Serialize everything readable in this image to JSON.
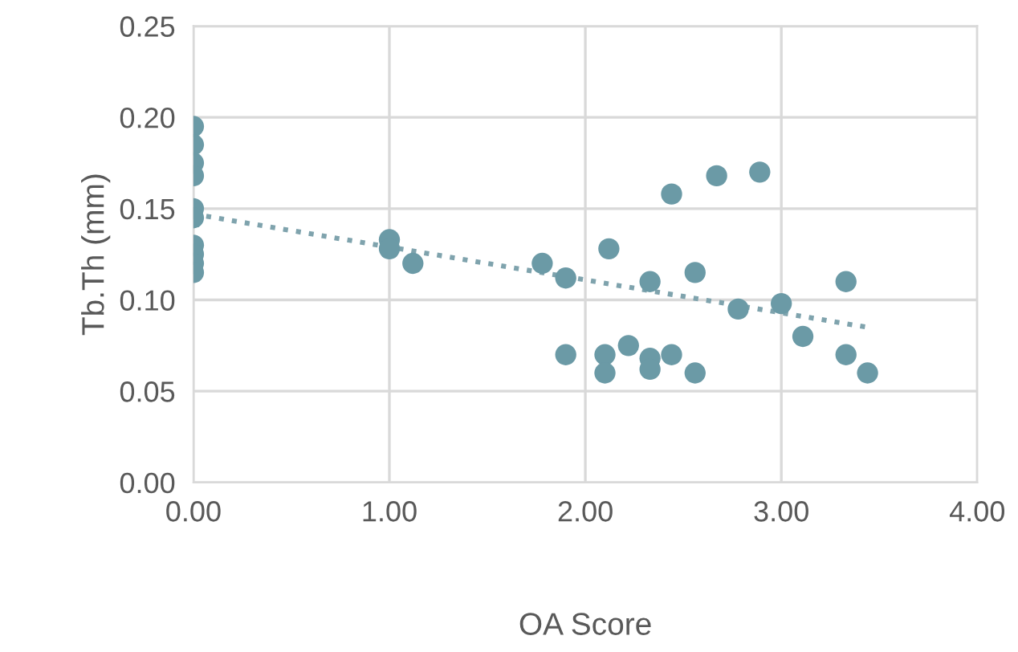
{
  "chart_data": {
    "type": "scatter",
    "xlabel": "OA Score",
    "ylabel": "Tb.Th (mm)",
    "xlim": [
      0,
      4
    ],
    "ylim": [
      0,
      0.25
    ],
    "xticks": [
      {
        "value": 0,
        "label": "0.00"
      },
      {
        "value": 1,
        "label": "1.00"
      },
      {
        "value": 2,
        "label": "2.00"
      },
      {
        "value": 3,
        "label": "3.00"
      },
      {
        "value": 4,
        "label": "4.00"
      }
    ],
    "yticks": [
      {
        "value": 0,
        "label": "0.00"
      },
      {
        "value": 0.05,
        "label": "0.05"
      },
      {
        "value": 0.1,
        "label": "0.10"
      },
      {
        "value": 0.15,
        "label": "0.15"
      },
      {
        "value": 0.2,
        "label": "0.20"
      },
      {
        "value": 0.25,
        "label": "0.25"
      }
    ],
    "grid": true,
    "series": [
      {
        "marker": "circle",
        "color": "#6b9aa6",
        "x": [
          0,
          0,
          0,
          0,
          0,
          0,
          0,
          0,
          0,
          0,
          1.0,
          1.0,
          1.12,
          1.78,
          1.9,
          1.9,
          2.12,
          2.1,
          2.1,
          2.22,
          2.33,
          2.33,
          2.33,
          2.44,
          2.44,
          2.56,
          2.56,
          2.67,
          2.89,
          2.78,
          3.0,
          3.11,
          3.33,
          3.33,
          3.44
        ],
        "values": [
          0.195,
          0.185,
          0.175,
          0.168,
          0.15,
          0.145,
          0.13,
          0.125,
          0.12,
          0.115,
          0.133,
          0.128,
          0.12,
          0.12,
          0.112,
          0.07,
          0.128,
          0.07,
          0.06,
          0.075,
          0.11,
          0.068,
          0.062,
          0.07,
          0.158,
          0.115,
          0.06,
          0.168,
          0.17,
          0.095,
          0.098,
          0.08,
          0.11,
          0.07,
          0.06
        ]
      },
      {
        "type": "line",
        "color": "#7fa3ad",
        "line_style": "dotted",
        "marker": "none",
        "x": [
          0,
          3.44
        ],
        "values": [
          0.147,
          0.085
        ]
      }
    ]
  }
}
